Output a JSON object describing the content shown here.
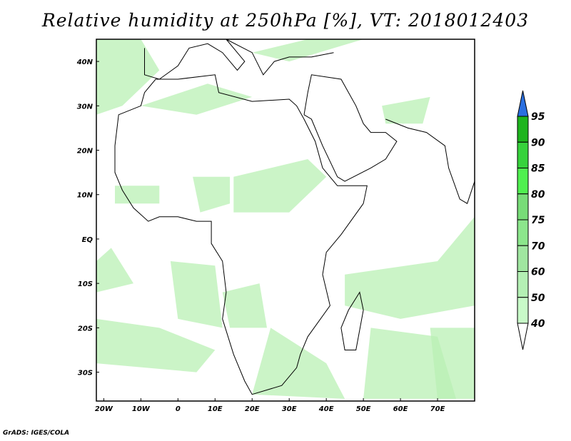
{
  "title": "Relative humidity at 250hPa [%], VT: 2018012403",
  "credit": "GrADS: IGES/COLA",
  "map": {
    "lon_range": [
      -22,
      80
    ],
    "lat_range": [
      -36.5,
      45
    ],
    "lon_ticks": [
      {
        "v": -20,
        "label": "20W"
      },
      {
        "v": -10,
        "label": "10W"
      },
      {
        "v": 0,
        "label": "0"
      },
      {
        "v": 10,
        "label": "10E"
      },
      {
        "v": 20,
        "label": "20E"
      },
      {
        "v": 30,
        "label": "30E"
      },
      {
        "v": 40,
        "label": "40E"
      },
      {
        "v": 50,
        "label": "50E"
      },
      {
        "v": 60,
        "label": "60E"
      },
      {
        "v": 70,
        "label": "70E"
      }
    ],
    "lat_ticks": [
      {
        "v": 40,
        "label": "40N"
      },
      {
        "v": 30,
        "label": "30N"
      },
      {
        "v": 20,
        "label": "20N"
      },
      {
        "v": 10,
        "label": "10N"
      },
      {
        "v": 0,
        "label": "EQ"
      },
      {
        "v": -10,
        "label": "10S"
      },
      {
        "v": -20,
        "label": "20S"
      },
      {
        "v": -30,
        "label": "30S"
      }
    ]
  },
  "colorbar": {
    "levels": [
      "40",
      "50",
      "60",
      "70",
      "75",
      "80",
      "85",
      "90",
      "95"
    ],
    "colors": [
      "#e6ffe6",
      "#c8fac8",
      "#b4f0b4",
      "#a0e6a0",
      "#8ce68c",
      "#78dc78",
      "#50f050",
      "#37d23c",
      "#1eb41e"
    ],
    "over_color": "#2a6fe0",
    "under_color": "#ffffff"
  }
}
